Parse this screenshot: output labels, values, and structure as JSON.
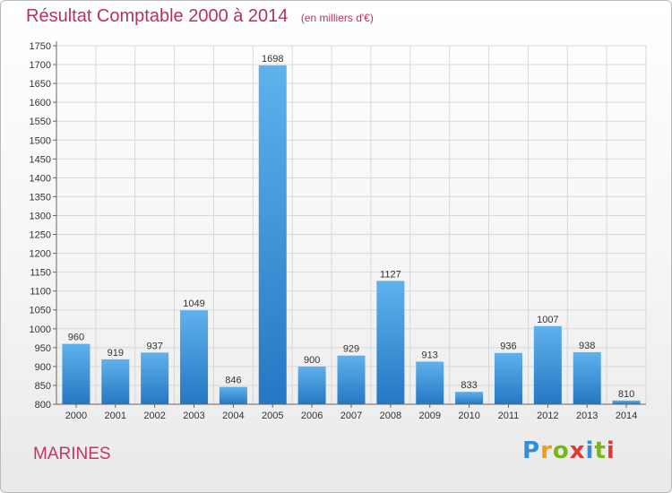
{
  "header": {
    "title": "Résultat Comptable 2000 à 2014",
    "unit": "(en milliers d'€)"
  },
  "footer": {
    "town": "MARINES",
    "logo": [
      "P",
      "r",
      "o",
      "x",
      "i",
      "t",
      "i"
    ],
    "logo_colors": [
      "#2f8fd8",
      "#f39a1c",
      "#7ab51d",
      "#e23b2e",
      "#2f8fd8",
      "#7ab51d",
      "#e23b2e"
    ]
  },
  "colors": {
    "title": "#b5325f",
    "bar_light": "#5fb2ec",
    "bar_dark": "#2577c3",
    "axis": "#666666",
    "grid": "#d8d8d8"
  },
  "chart_data": {
    "type": "bar",
    "title": "Résultat Comptable 2000 à 2014",
    "subtitle": "(en milliers d'€)",
    "xlabel": "",
    "ylabel": "",
    "categories": [
      "2000",
      "2001",
      "2002",
      "2003",
      "2004",
      "2005",
      "2006",
      "2007",
      "2008",
      "2009",
      "2010",
      "2011",
      "2012",
      "2013",
      "2014"
    ],
    "values": [
      960,
      919,
      937,
      1049,
      846,
      1698,
      900,
      929,
      1127,
      913,
      833,
      936,
      1007,
      938,
      810
    ],
    "ylim": [
      800,
      1750
    ],
    "ytick_step": 50,
    "grid": true
  }
}
